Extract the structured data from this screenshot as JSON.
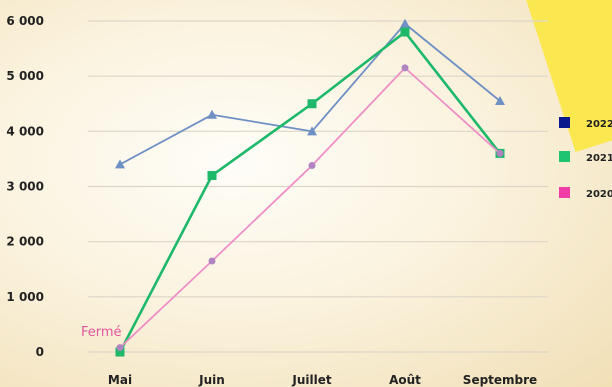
{
  "chart_data": {
    "type": "line",
    "categories": [
      "Mai",
      "Juin",
      "Juillet",
      "Août",
      "Septembre"
    ],
    "yticks": [
      "0",
      "1 000",
      "2 000",
      "3 000",
      "4 000",
      "5 000",
      "6 000"
    ],
    "ylim": [
      0,
      6000
    ],
    "grid": true,
    "legend_position": "right",
    "series": [
      {
        "name": "2022",
        "color": "#6f90c4",
        "legend_color": "#0a1a8c",
        "marker": "triangle",
        "values": [
          3400,
          4300,
          4000,
          5950,
          4550
        ]
      },
      {
        "name": "2021",
        "color": "#1db86a",
        "legend_color": "#1ec46f",
        "marker": "square",
        "values": [
          0,
          3200,
          4500,
          5800,
          3600
        ]
      },
      {
        "name": "2020",
        "color": "#ee8fc8",
        "legend_color": "#f03ca6",
        "marker": "circle",
        "values": [
          80,
          1650,
          3380,
          5150,
          3600
        ]
      }
    ],
    "annotation": {
      "text": "Fermé",
      "category": "Mai",
      "value": 0,
      "color": "#e0569f"
    }
  }
}
